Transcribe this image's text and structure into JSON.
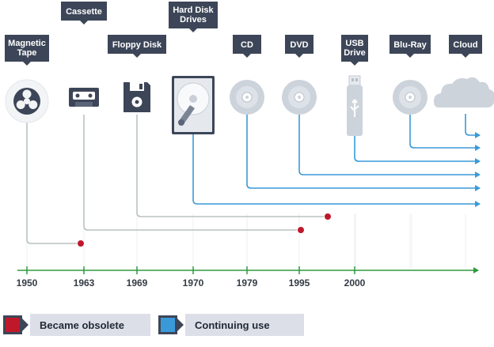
{
  "devices": [
    {
      "id": "magnetic-tape",
      "label": [
        "Magnetic",
        "Tape"
      ],
      "icon": "tape-reel-icon",
      "year": "1950",
      "status": "obsolete"
    },
    {
      "id": "cassette",
      "label": [
        "Cassette"
      ],
      "icon": "cassette-icon",
      "year": "1963",
      "status": "obsolete"
    },
    {
      "id": "floppy-disk",
      "label": [
        "Floppy Disk"
      ],
      "icon": "floppy-disk-icon",
      "year": "1969",
      "status": "obsolete"
    },
    {
      "id": "hard-disk-drives",
      "label": [
        "Hard Disk",
        "Drives"
      ],
      "icon": "hard-disk-icon",
      "year": "1970",
      "status": "continuing"
    },
    {
      "id": "cd",
      "label": [
        "CD"
      ],
      "icon": "disc-icon",
      "year": "1979",
      "status": "continuing"
    },
    {
      "id": "dvd",
      "label": [
        "DVD"
      ],
      "icon": "disc-icon",
      "year": "1995",
      "status": "continuing"
    },
    {
      "id": "usb-drive",
      "label": [
        "USB",
        "Drive"
      ],
      "icon": "usb-drive-icon",
      "year": "2000",
      "status": "continuing"
    },
    {
      "id": "blu-ray",
      "label": [
        "Blu-Ray"
      ],
      "icon": "disc-icon",
      "year": "",
      "status": "continuing"
    },
    {
      "id": "cloud",
      "label": [
        "Cloud"
      ],
      "icon": "cloud-icon",
      "year": "",
      "status": "continuing"
    }
  ],
  "legend": {
    "obsolete_label": "Became obsolete",
    "continuing_label": "Continuing use"
  },
  "colors": {
    "label_bg": "#3d4658",
    "obsolete": "#c0182b",
    "continuing": "#3a9ad9",
    "obsolete_line": "#b9c2c2",
    "timeline": "#2e9a3e",
    "icon_gray": "#cdd3db"
  }
}
